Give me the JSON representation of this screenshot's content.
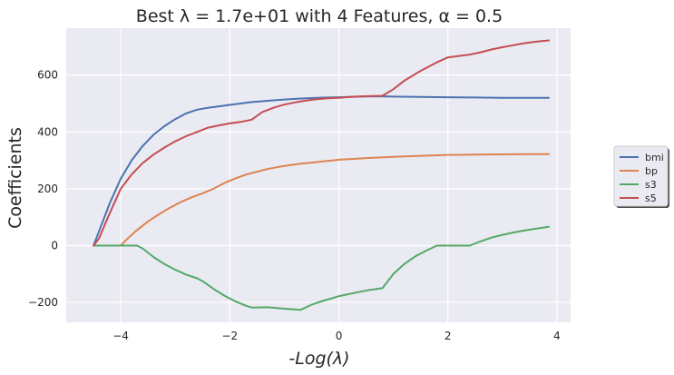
{
  "chart_data": {
    "type": "line",
    "title": "Best λ = 1.7e+01 with 4 Features, α = 0.5",
    "xlabel": "-Log(λ)",
    "ylabel": "Coefficients",
    "xlim": [
      -5,
      4.25
    ],
    "ylim": [
      -270,
      765
    ],
    "xticks": [
      -4,
      -2,
      0,
      2,
      4
    ],
    "yticks": [
      -200,
      0,
      200,
      400,
      600
    ],
    "xtick_labels": [
      "−4",
      "−2",
      "0",
      "2",
      "4"
    ],
    "ytick_labels": [
      "−200",
      "0",
      "200",
      "400",
      "600"
    ],
    "grid": true,
    "legend_position": "right",
    "series": [
      {
        "name": "bmi",
        "color": "#4c72b0",
        "x": [
          -4.5,
          -4.4,
          -4.2,
          -4.0,
          -3.8,
          -3.6,
          -3.4,
          -3.2,
          -3.0,
          -2.8,
          -2.6,
          -2.4,
          -2.2,
          -2.0,
          -1.8,
          -1.6,
          -1.4,
          -1.2,
          -1.0,
          -0.8,
          -0.6,
          -0.4,
          -0.2,
          0.0,
          0.2,
          0.4,
          0.6,
          0.8,
          1.0,
          1.5,
          2.0,
          2.5,
          3.0,
          3.5,
          3.85
        ],
        "y": [
          0,
          50,
          150,
          235,
          300,
          350,
          390,
          420,
          445,
          465,
          478,
          485,
          490,
          495,
          500,
          505,
          508,
          511,
          514,
          516,
          518,
          520,
          521,
          522,
          523,
          524,
          525,
          525,
          524,
          523,
          522,
          521,
          520,
          520,
          520
        ]
      },
      {
        "name": "bp",
        "color": "#dd8452",
        "x": [
          -4.5,
          -4.0,
          -3.9,
          -3.7,
          -3.5,
          -3.3,
          -3.1,
          -2.9,
          -2.7,
          -2.5,
          -2.3,
          -2.1,
          -1.9,
          -1.7,
          -1.5,
          -1.3,
          -1.1,
          -0.9,
          -0.7,
          -0.5,
          -0.3,
          -0.1,
          0.0,
          0.5,
          1.0,
          1.5,
          2.0,
          2.5,
          3.0,
          3.5,
          3.85
        ],
        "y": [
          0,
          0,
          20,
          55,
          85,
          110,
          133,
          153,
          170,
          184,
          200,
          220,
          236,
          250,
          260,
          270,
          277,
          283,
          288,
          292,
          296,
          300,
          302,
          308,
          312,
          316,
          319,
          320,
          321,
          322,
          322
        ]
      },
      {
        "name": "s3",
        "color": "#55a868",
        "x": [
          -4.5,
          -4.0,
          -3.7,
          -3.6,
          -3.4,
          -3.2,
          -3.0,
          -2.8,
          -2.6,
          -2.5,
          -2.3,
          -2.1,
          -1.9,
          -1.7,
          -1.6,
          -1.3,
          -1.0,
          -0.7,
          -0.5,
          -0.3,
          -0.1,
          0.0,
          0.2,
          0.4,
          0.6,
          0.8,
          1.0,
          1.2,
          1.4,
          1.6,
          1.8,
          2.0,
          2.4,
          2.6,
          2.8,
          3.0,
          3.2,
          3.4,
          3.6,
          3.85
        ],
        "y": [
          0,
          0,
          0,
          -10,
          -40,
          -65,
          -85,
          -102,
          -115,
          -125,
          -152,
          -176,
          -196,
          -212,
          -218,
          -217,
          -222,
          -226,
          -208,
          -195,
          -184,
          -178,
          -170,
          -162,
          -155,
          -150,
          -100,
          -65,
          -38,
          -18,
          0,
          0,
          0,
          15,
          28,
          38,
          46,
          53,
          59,
          66
        ]
      },
      {
        "name": "s5",
        "color": "#c44e52",
        "x": [
          -4.5,
          -4.4,
          -4.2,
          -4.0,
          -3.8,
          -3.6,
          -3.4,
          -3.2,
          -3.0,
          -2.8,
          -2.6,
          -2.4,
          -2.2,
          -2.0,
          -1.8,
          -1.6,
          -1.4,
          -1.2,
          -1.0,
          -0.8,
          -0.6,
          -0.4,
          -0.2,
          0.0,
          0.2,
          0.4,
          0.8,
          1.0,
          1.2,
          1.5,
          1.8,
          2.0,
          2.4,
          2.6,
          2.8,
          3.0,
          3.2,
          3.4,
          3.6,
          3.85
        ],
        "y": [
          0,
          25,
          115,
          200,
          250,
          290,
          320,
          345,
          367,
          385,
          400,
          415,
          423,
          430,
          435,
          443,
          470,
          485,
          496,
          504,
          510,
          515,
          518,
          520,
          523,
          525,
          527,
          550,
          580,
          615,
          645,
          662,
          672,
          680,
          690,
          698,
          705,
          712,
          717,
          722
        ]
      }
    ]
  }
}
